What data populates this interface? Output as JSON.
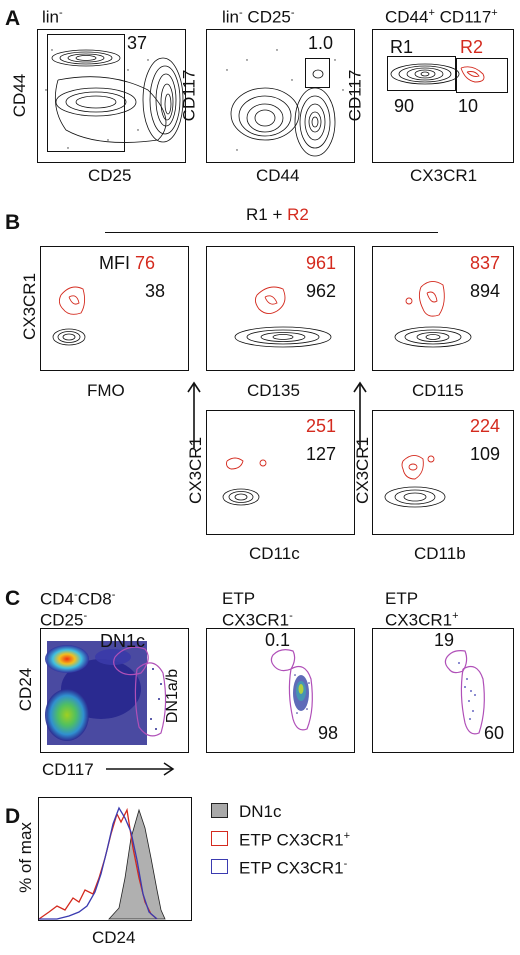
{
  "panels": {
    "a": "A",
    "b": "B",
    "c": "C",
    "d": "D"
  },
  "a": {
    "t1": "lin",
    "t1sup": "-",
    "t2": "lin",
    "t2sup": "-",
    "t2b": "CD25",
    "t2bsup": "-",
    "t3a": "CD44",
    "t3asup": "+",
    "t3b": "CD117",
    "t3bsup": "+",
    "p1": {
      "x": "CD25",
      "y": "CD44",
      "gate": "37"
    },
    "p2": {
      "x": "CD44",
      "y": "CD117",
      "gate": "1.0"
    },
    "p3": {
      "x": "CX3CR1",
      "y": "CD117",
      "r1": "R1",
      "r2": "R2",
      "v1": "90",
      "v2": "10"
    }
  },
  "b": {
    "header": {
      "r1": "R1",
      "plus": " + ",
      "r2": "R2"
    },
    "fmo": {
      "mfi": "MFI",
      "red": "76",
      "black": "38",
      "x": "FMO",
      "y": "CX3CR1"
    },
    "cd135": {
      "red": "961",
      "black": "962",
      "x": "CD135"
    },
    "cd115": {
      "red": "837",
      "black": "894",
      "x": "CD115"
    },
    "cd11c": {
      "red": "251",
      "black": "127",
      "x": "CD11c",
      "y": "CX3CR1"
    },
    "cd11b": {
      "red": "224",
      "black": "109",
      "x": "CD11b",
      "y": "CX3CR1"
    }
  },
  "c": {
    "t1a": "CD4",
    "t1asup": "-",
    "t1b": "CD8",
    "t1bsup": "-",
    "t1c": "CD25",
    "t1csup": "-",
    "t2a": "ETP",
    "t2b": "CX3CR1",
    "t2bsup": "-",
    "t3a": "ETP",
    "t3b": "CX3CR1",
    "t3bsup": "+",
    "p1": {
      "y": "CD24",
      "x": "CD117",
      "dn1c": "DN1c",
      "dn1ab": "DN1a/b"
    },
    "p2": {
      "top": "0.1",
      "bottom": "98"
    },
    "p3": {
      "top": "19",
      "bottom": "60"
    }
  },
  "d": {
    "y": "% of max",
    "x": "CD24",
    "legend": [
      {
        "label": "DN1c",
        "sup": "",
        "color": "#a9a9a9",
        "fill": true
      },
      {
        "label": "ETP CX3CR1",
        "sup": "+",
        "color": "#d42a1e",
        "fill": false
      },
      {
        "label": "ETP CX3CR1",
        "sup": "-",
        "color": "#3b3bb0",
        "fill": false
      }
    ]
  },
  "colors": {
    "red": "#d42a1e",
    "blue": "#3b3bb0",
    "grey": "#a9a9a9",
    "gate": "#b050b8"
  }
}
